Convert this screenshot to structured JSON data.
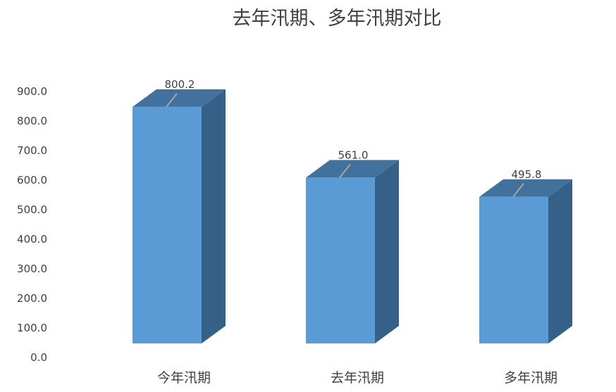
{
  "chart_data": {
    "type": "bar",
    "title": "去年汛期、多年汛期对比",
    "categories": [
      "今年汛期",
      "去年汛期",
      "多年汛期"
    ],
    "values": [
      800.2,
      561.0,
      495.8
    ],
    "data_labels": [
      "800.2",
      "561.0",
      "495.8"
    ],
    "y_ticks": [
      "0.0",
      "100.0",
      "200.0",
      "300.0",
      "400.0",
      "500.0",
      "600.0",
      "700.0",
      "800.0",
      "900.0"
    ],
    "ylim": [
      0,
      900
    ],
    "xlabel": "",
    "ylabel": "",
    "grid": false,
    "legend": "none",
    "style": "3d-column",
    "colors": {
      "front": "#5B9BD5",
      "top": "#41719C",
      "side": "#356087",
      "text": "#404040"
    }
  }
}
